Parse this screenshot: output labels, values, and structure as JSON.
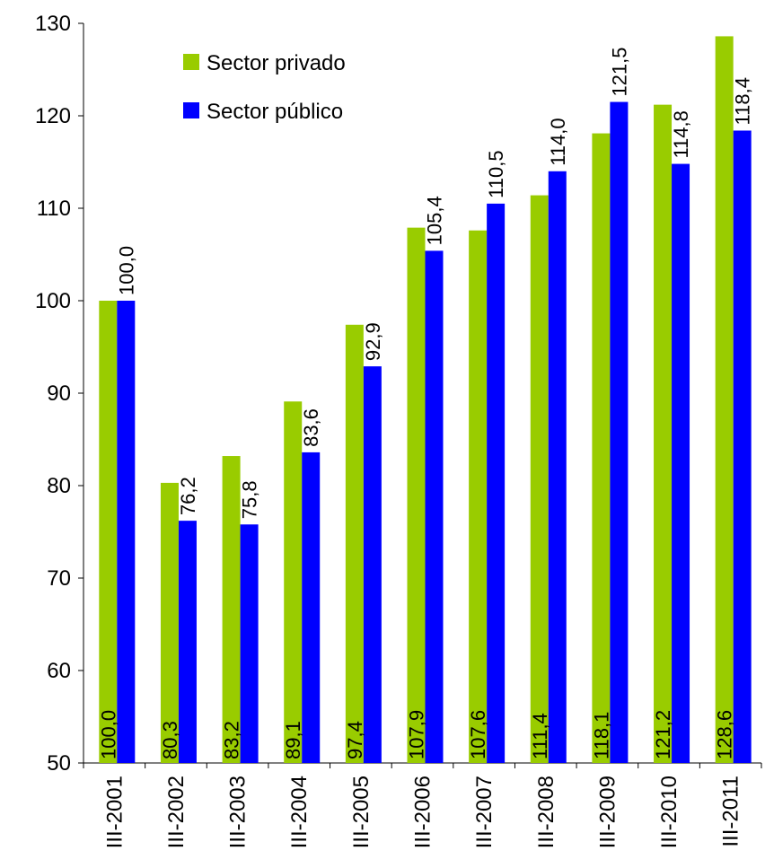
{
  "chart_data": {
    "type": "bar",
    "title": "",
    "xlabel": "",
    "ylabel": "",
    "ylim": [
      50,
      130
    ],
    "yticks": [
      50,
      60,
      70,
      80,
      90,
      100,
      110,
      120,
      130
    ],
    "categories": [
      "III-2001",
      "III-2002",
      "III-2003",
      "III-2004",
      "III-2005",
      "III-2006",
      "III-2007",
      "III-2008",
      "III-2009",
      "III-2010",
      "III-2011"
    ],
    "series": [
      {
        "name": "Sector privado",
        "color": "#99CC00",
        "values": [
          100.0,
          80.3,
          83.2,
          89.1,
          97.4,
          107.9,
          107.6,
          111.4,
          118.1,
          121.2,
          128.6
        ],
        "labels": [
          "100,0",
          "80,3",
          "83,2",
          "89,1",
          "97,4",
          "107,9",
          "107,6",
          "111,4",
          "118,1",
          "121,2",
          "128,6"
        ]
      },
      {
        "name": "Sector público",
        "color": "#0000FF",
        "values": [
          100.0,
          76.2,
          75.8,
          83.6,
          92.9,
          105.4,
          110.5,
          114.0,
          121.5,
          114.8,
          118.4
        ],
        "labels": [
          "100,0",
          "76,2",
          "75,8",
          "83,6",
          "92,9",
          "105,4",
          "110,5",
          "114,0",
          "121,5",
          "114,8",
          "118,4"
        ]
      }
    ],
    "legend": {
      "position": "top-left"
    },
    "grid": false
  }
}
